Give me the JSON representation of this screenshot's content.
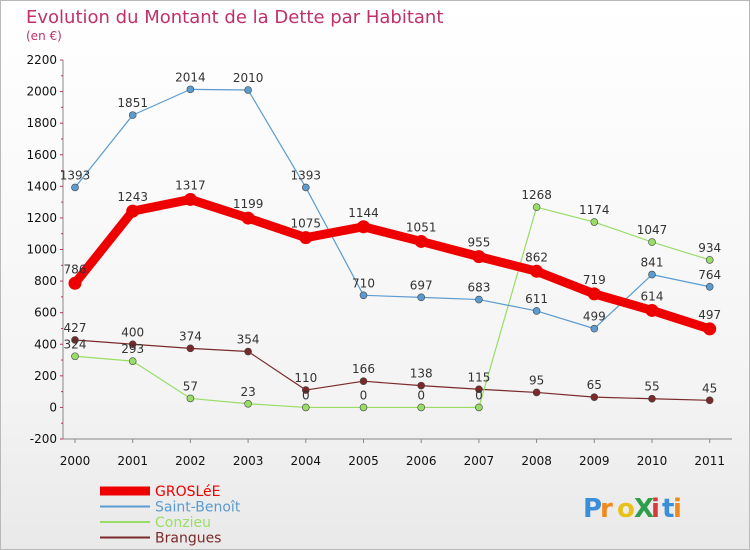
{
  "chart_data": {
    "type": "line",
    "title": "Evolution du Montant de la Dette par Habitant",
    "subtitle": "(en €)",
    "xlabel": "",
    "ylabel": "",
    "categories": [
      "2000",
      "2001",
      "2002",
      "2003",
      "2004",
      "2005",
      "2006",
      "2007",
      "2008",
      "2009",
      "2010",
      "2011"
    ],
    "ylim": [
      -200,
      2200
    ],
    "yticks": [
      -200,
      0,
      200,
      400,
      600,
      800,
      1000,
      1200,
      1400,
      1600,
      1800,
      2000,
      2200
    ],
    "grid": false,
    "legend_position": "bottom-left",
    "series": [
      {
        "name": "GROSLéE",
        "color": "#ee0000",
        "values": [
          786,
          1243,
          1317,
          1199,
          1075,
          1144,
          1051,
          955,
          862,
          719,
          614,
          497
        ]
      },
      {
        "name": "Saint-Benoît",
        "color": "#5b9bd0",
        "values": [
          1393,
          1851,
          2014,
          2010,
          1393,
          710,
          697,
          683,
          611,
          499,
          841,
          764
        ]
      },
      {
        "name": "Conzieu",
        "color": "#99dd66",
        "values": [
          324,
          293,
          57,
          23,
          0,
          0,
          0,
          0,
          1268,
          1174,
          1047,
          934
        ]
      },
      {
        "name": "Brangues",
        "color": "#7a2a2a",
        "values": [
          427,
          400,
          374,
          354,
          110,
          166,
          138,
          115,
          95,
          65,
          55,
          45
        ]
      }
    ]
  },
  "logo": {
    "text": "ProXiti"
  }
}
